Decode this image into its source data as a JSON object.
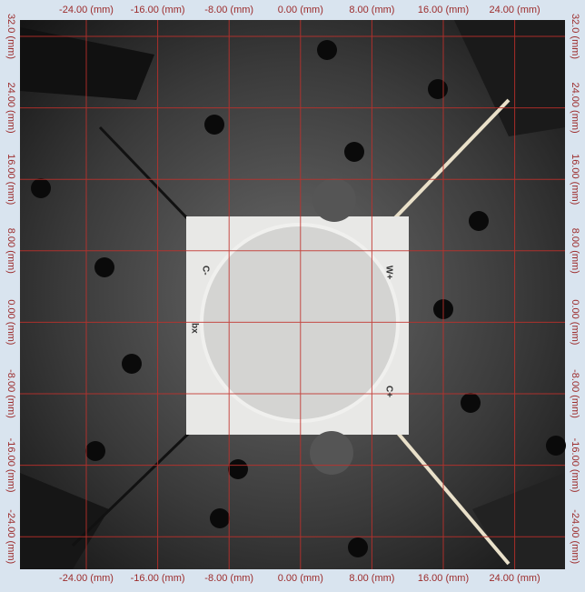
{
  "x_labels": [
    "-24.00 (mm)",
    "-16.00 (mm)",
    "-8.00 (mm)",
    "0.00 (mm)",
    "8.00 (mm)",
    "16.00 (mm)",
    "24.00 (mm)"
  ],
  "y_labels": [
    "32.0 (mm)",
    "24.00 (mm)",
    "16.00 (mm)",
    "8.00 (mm)",
    "0.00 (mm)",
    "-8.00 (mm)",
    "-16.00 (mm)",
    "-24.00 (mm)"
  ],
  "board_labels": [
    "C-",
    "W+",
    "C+",
    "bx"
  ]
}
